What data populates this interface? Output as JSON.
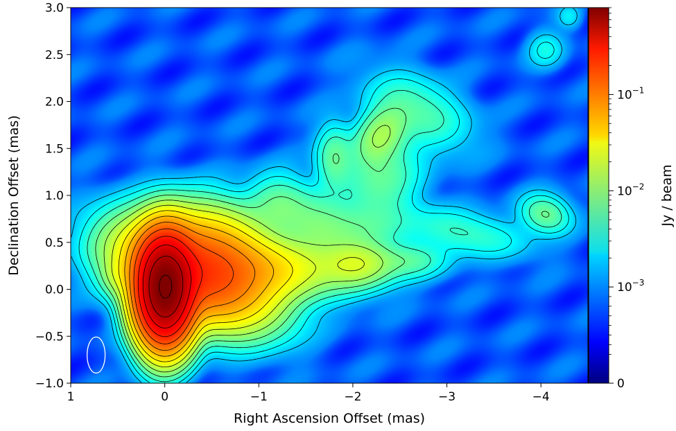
{
  "chart_data": {
    "type": "heatmap",
    "title": "",
    "xlabel": "Right Ascension Offset (mas)",
    "ylabel": "Declination Offset (mas)",
    "xlim": [
      1,
      -4.5
    ],
    "ylim": [
      -1.0,
      3.0
    ],
    "x_ticks": [
      {
        "value": 1,
        "label": "1"
      },
      {
        "value": 0,
        "label": "0"
      },
      {
        "value": -1,
        "label": "−1"
      },
      {
        "value": -2,
        "label": "−2"
      },
      {
        "value": -3,
        "label": "−3"
      },
      {
        "value": -4,
        "label": "−4"
      }
    ],
    "y_ticks": [
      {
        "value": -1.0,
        "label": "−1.0"
      },
      {
        "value": -0.5,
        "label": "−0.5"
      },
      {
        "value": 0.0,
        "label": "0.0"
      },
      {
        "value": 0.5,
        "label": "0.5"
      },
      {
        "value": 1.0,
        "label": "1.0"
      },
      {
        "value": 1.5,
        "label": "1.5"
      },
      {
        "value": 2.0,
        "label": "2.0"
      },
      {
        "value": 2.5,
        "label": "2.5"
      },
      {
        "value": 3.0,
        "label": "3.0"
      }
    ],
    "grid": false,
    "colorbar": {
      "label": "Jy / beam",
      "scale": "symlog",
      "colormap": "jet",
      "range": [
        0,
        0.8
      ],
      "ticks": [
        {
          "value": 0,
          "label": "0"
        },
        {
          "value": 0.001,
          "label": "10−3"
        },
        {
          "value": 0.01,
          "label": "10−2"
        },
        {
          "value": 0.1,
          "label": "10−1"
        }
      ]
    },
    "components": [
      {
        "ra": 0.0,
        "dec": 0.0,
        "peak": 0.8
      },
      {
        "ra": -0.5,
        "dec": 0.35,
        "peak": 0.06
      },
      {
        "ra": -1.0,
        "dec": 0.2,
        "peak": 0.022
      },
      {
        "ra": -2.05,
        "dec": 0.27,
        "peak": 0.014
      },
      {
        "ra": -2.3,
        "dec": 1.65,
        "peak": 0.01
      },
      {
        "ra": -1.8,
        "dec": 1.4,
        "peak": 0.006
      },
      {
        "ra": -4.05,
        "dec": 0.8,
        "peak": 0.007
      },
      {
        "ra": -2.6,
        "dec": 0.3,
        "peak": 0.005
      },
      {
        "ra": 0.5,
        "dec": 0.15,
        "peak": 0.006
      }
    ],
    "beam": {
      "ra": 0.73,
      "dec": -0.7,
      "color": "#ffffff"
    },
    "contours": "black"
  }
}
